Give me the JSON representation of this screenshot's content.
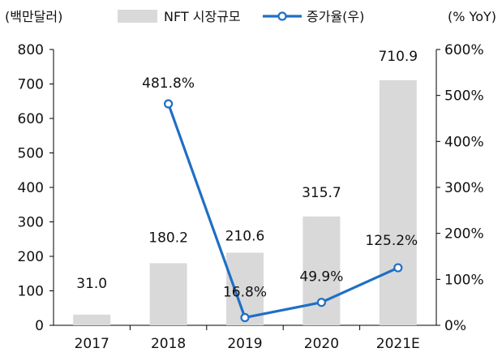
{
  "chart_data": {
    "type": "bar+line",
    "categories": [
      "2017",
      "2018",
      "2019",
      "2020",
      "2021E"
    ],
    "left_axis": {
      "unit_label": "(백만달러)",
      "ylim": [
        0,
        800
      ],
      "ticks": [
        "0",
        "100",
        "200",
        "300",
        "400",
        "500",
        "600",
        "700",
        "800"
      ]
    },
    "right_axis": {
      "unit_label": "(% YoY)",
      "ylim": [
        0,
        600
      ],
      "ticks": [
        "0%",
        "100%",
        "200%",
        "300%",
        "400%",
        "500%",
        "600%"
      ]
    },
    "series": [
      {
        "name": "NFT 시장규모",
        "type": "bar",
        "axis": "left",
        "values": [
          31.0,
          180.2,
          210.6,
          315.7,
          710.9
        ],
        "labels": [
          "31.0",
          "180.2",
          "210.6",
          "315.7",
          "710.9"
        ],
        "color": "#d9d9d9"
      },
      {
        "name": "증가율(우)",
        "type": "line",
        "axis": "right",
        "values": [
          null,
          481.8,
          16.8,
          49.9,
          125.2
        ],
        "labels": [
          null,
          "481.8%",
          "16.8%",
          "49.9%",
          "125.2%"
        ],
        "color": "#1f6fc5"
      }
    ],
    "grid": false,
    "legend": "top"
  }
}
